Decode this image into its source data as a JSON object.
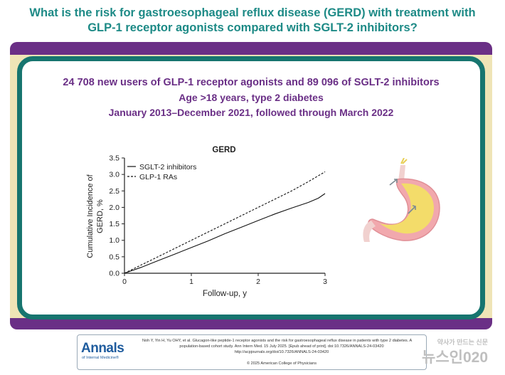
{
  "header": {
    "title_line1": "What is the risk for gastroesophageal reflux disease (GERD) with treatment with",
    "title_line2": "GLP-1 receptor agonists compared with SGLT-2 inhibitors?"
  },
  "study": {
    "line1": "24 708 new users of GLP-1 receptor agonists and 89 096 of SGLT-2 inhibitors",
    "line2": "Age >18 years, type 2 diabetes",
    "line3": "January 2013–December 2021, followed through March 2022"
  },
  "chart_data": {
    "type": "line",
    "title": "GERD",
    "xlabel": "Follow-up, y",
    "ylabel_line1": "Cumulative Incidence of",
    "ylabel_line2": "GERD, %",
    "xlim": [
      0,
      3
    ],
    "ylim": [
      0,
      3.5
    ],
    "xticks": [
      "0",
      "1",
      "2",
      "3"
    ],
    "yticks": [
      "0.0",
      "0.5",
      "1.0",
      "1.5",
      "2.0",
      "2.5",
      "3.0",
      "3.5"
    ],
    "grid": false,
    "legend_position": "top-left",
    "series": [
      {
        "name": "SGLT-2 inhibitors",
        "style": "solid",
        "x": [
          0,
          0.25,
          0.5,
          0.75,
          1.0,
          1.25,
          1.5,
          1.75,
          2.0,
          2.25,
          2.5,
          2.75,
          2.9,
          3.0
        ],
        "y": [
          0,
          0.18,
          0.38,
          0.58,
          0.78,
          0.98,
          1.2,
          1.4,
          1.6,
          1.8,
          1.98,
          2.15,
          2.28,
          2.42
        ]
      },
      {
        "name": "GLP-1 RAs",
        "style": "dashed",
        "x": [
          0,
          0.25,
          0.5,
          0.75,
          1.0,
          1.25,
          1.5,
          1.75,
          2.0,
          2.25,
          2.5,
          2.75,
          3.0
        ],
        "y": [
          0,
          0.25,
          0.5,
          0.75,
          1.0,
          1.25,
          1.5,
          1.75,
          2.0,
          2.25,
          2.5,
          2.78,
          3.08
        ]
      }
    ]
  },
  "footer": {
    "logo": "Annals",
    "logo_sub": "of Internal Medicine®",
    "citation_line1": "Noh Y, Yin H, Yu OHY, et al. Glucagon-like peptide-1 receptor agonists and the risk for gastroesophageal reflux disease in patients with type 2 diabetes. A",
    "citation_line2": "population-based cohort study. Ann Intern Med. 15 July 2025. [Epub ahead of print]. doi:10.7326/ANNALS-24-03420",
    "citation_line3": "http://acpjournals.org/doi/10.7326/ANNALS-24-03420",
    "copyright": "© 2025 American College of Physicians",
    "watermark_small": "약사가 만드는 신문",
    "watermark_big": "뉴스인020"
  },
  "colors": {
    "title": "#1d8a86",
    "band": "#6a2f86",
    "panel_border": "#17756f",
    "study_text": "#6a2f86"
  }
}
